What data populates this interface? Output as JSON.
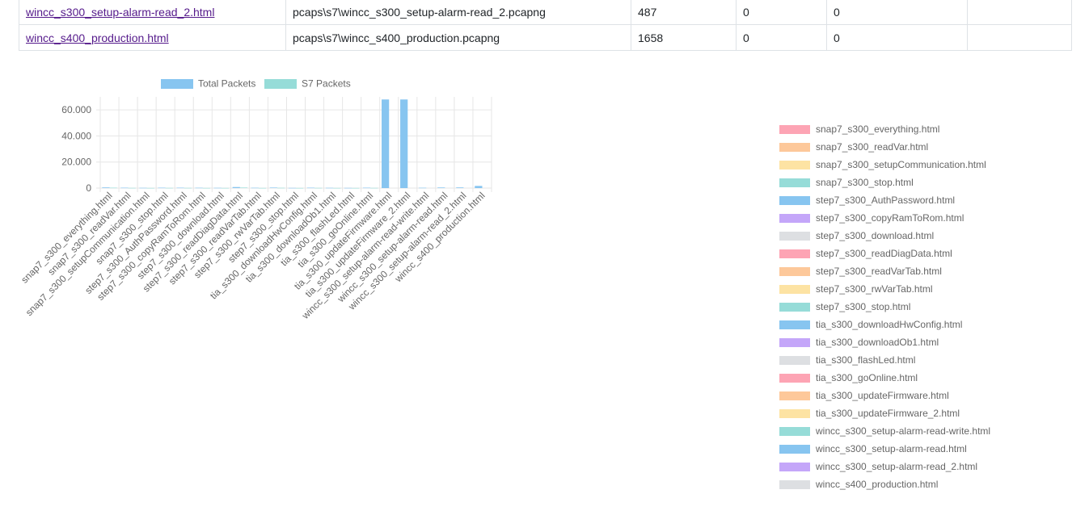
{
  "table": {
    "rows": [
      {
        "html": "wincc_s300_setup-alarm-read_2.html",
        "pcap": "pcaps\\s7\\wincc_s300_setup-alarm-read_2.pcapng",
        "total": "487",
        "s7": "0",
        "c5": "0",
        "c6": ""
      },
      {
        "html": "wincc_s400_production.html",
        "pcap": "pcaps\\s7\\wincc_s400_production.pcapng",
        "total": "1658",
        "s7": "0",
        "c5": "0",
        "c6": ""
      }
    ]
  },
  "chart_data": [
    {
      "type": "bar",
      "legend_position": "top",
      "grid": true,
      "ylim": [
        0,
        70000
      ],
      "yticks": [
        "0",
        "20.000",
        "40.000",
        "60.000"
      ],
      "categories": [
        "snap7_s300_everything.html",
        "snap7_s300_readVar.html",
        "snap7_s300_setupCommunication.html",
        "snap7_s300_stop.html",
        "step7_s300_AuthPassword.html",
        "step7_s300_copyRamToRom.html",
        "step7_s300_download.html",
        "step7_s300_readDiagData.html",
        "step7_s300_readVarTab.html",
        "step7_s300_rwVarTab.html",
        "step7_s300_stop.html",
        "tia_s300_downloadHwConfig.html",
        "tia_s300_downloadOb1.html",
        "tia_s300_flashLed.html",
        "tia_s300_goOnline.html",
        "tia_s300_updateFirmware.html",
        "tia_s300_updateFirmware_2.html",
        "wincc_s300_setup-alarm-read-write.html",
        "wincc_s300_setup-alarm-read.html",
        "wincc_s300_setup-alarm-read_2.html",
        "wincc_s400_production.html"
      ],
      "series": [
        {
          "name": "Total Packets",
          "color": "#87c5f0",
          "values": [
            500,
            300,
            200,
            300,
            300,
            250,
            200,
            800,
            250,
            400,
            150,
            300,
            200,
            150,
            300,
            68000,
            68000,
            250,
            450,
            487,
            1658
          ]
        },
        {
          "name": "S7 Packets",
          "color": "#96dcd8",
          "values": [
            300,
            150,
            100,
            150,
            150,
            100,
            100,
            400,
            100,
            200,
            80,
            150,
            100,
            80,
            150,
            0,
            0,
            0,
            0,
            0,
            0
          ]
        }
      ]
    },
    {
      "type": "pie",
      "legend_position": "right",
      "labels": [
        "snap7_s300_everything.html",
        "snap7_s300_readVar.html",
        "snap7_s300_setupCommunication.html",
        "snap7_s300_stop.html",
        "step7_s300_AuthPassword.html",
        "step7_s300_copyRamToRom.html",
        "step7_s300_download.html",
        "step7_s300_readDiagData.html",
        "step7_s300_readVarTab.html",
        "step7_s300_rwVarTab.html",
        "step7_s300_stop.html",
        "tia_s300_downloadHwConfig.html",
        "tia_s300_downloadOb1.html",
        "tia_s300_flashLed.html",
        "tia_s300_goOnline.html",
        "tia_s300_updateFirmware.html",
        "tia_s300_updateFirmware_2.html",
        "wincc_s300_setup-alarm-read-write.html",
        "wincc_s300_setup-alarm-read.html",
        "wincc_s300_setup-alarm-read_2.html",
        "wincc_s400_production.html"
      ],
      "colors": [
        "#fda4b4",
        "#fdc89a",
        "#fde3a3",
        "#96dcd8",
        "#87c5f0",
        "#c4a6f9",
        "#dddfe2"
      ]
    }
  ]
}
